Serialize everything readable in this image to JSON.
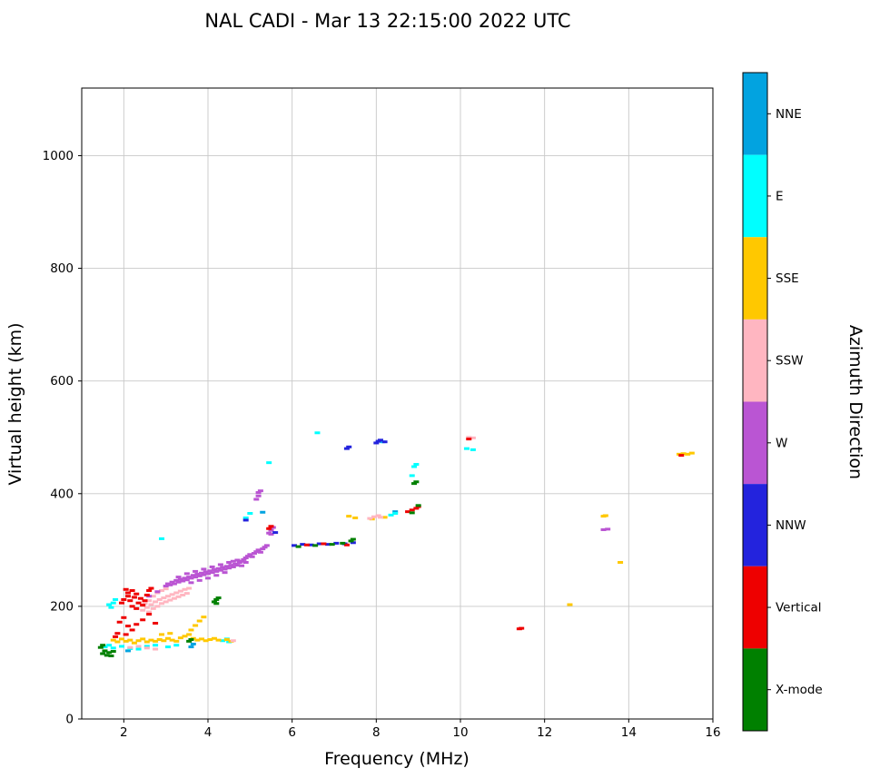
{
  "chart_data": {
    "type": "scatter",
    "title": "NAL CADI - Mar 13 22:15:00 2022 UTC",
    "xlabel": "Frequency (MHz)",
    "ylabel": "Virtual height (km)",
    "colorbar_label": "Azimuth Direction",
    "xlim": [
      1,
      16
    ],
    "ylim": [
      0,
      1120
    ],
    "x_ticks": [
      2,
      4,
      6,
      8,
      10,
      12,
      14,
      16
    ],
    "y_ticks": [
      0,
      200,
      400,
      600,
      800,
      1000
    ],
    "grid": true,
    "marker": "horizontal-dash",
    "legend_position": "right-colorbar",
    "categories": [
      {
        "name": "NNE",
        "color": "#02A3E0"
      },
      {
        "name": "E",
        "color": "#00FFFF"
      },
      {
        "name": "SSE",
        "color": "#FFC800"
      },
      {
        "name": "SSW",
        "color": "#FFB6C1"
      },
      {
        "name": "W",
        "color": "#BA55D3"
      },
      {
        "name": "NNW",
        "color": "#2323DD"
      },
      {
        "name": "Vertical",
        "color": "#EE0000"
      },
      {
        "name": "X-mode",
        "color": "#008000"
      }
    ],
    "series": [
      {
        "name": "NNE",
        "points": [
          [
            2.1,
            121
          ],
          [
            3.6,
            128
          ],
          [
            3.65,
            133
          ],
          [
            5.3,
            367
          ],
          [
            8.45,
            368
          ]
        ]
      },
      {
        "name": "E",
        "points": [
          [
            1.55,
            128
          ],
          [
            1.65,
            131
          ],
          [
            1.75,
            126
          ],
          [
            1.95,
            129
          ],
          [
            2.15,
            125
          ],
          [
            2.35,
            124
          ],
          [
            2.55,
            129
          ],
          [
            2.75,
            131
          ],
          [
            3.05,
            128
          ],
          [
            3.25,
            131
          ],
          [
            4.35,
            139
          ],
          [
            4.45,
            142
          ],
          [
            4.5,
            137
          ],
          [
            1.65,
            203
          ],
          [
            1.7,
            198
          ],
          [
            1.75,
            206
          ],
          [
            1.8,
            212
          ],
          [
            2.9,
            320
          ],
          [
            4.9,
            357
          ],
          [
            5.0,
            365
          ],
          [
            5.45,
            455
          ],
          [
            6.6,
            508
          ],
          [
            8.15,
            492
          ],
          [
            8.35,
            362
          ],
          [
            8.45,
            365
          ],
          [
            8.85,
            432
          ],
          [
            8.9,
            448
          ],
          [
            8.95,
            452
          ],
          [
            10.15,
            480
          ],
          [
            10.3,
            478
          ]
        ]
      },
      {
        "name": "SSE",
        "points": [
          [
            1.75,
            140
          ],
          [
            1.85,
            137
          ],
          [
            1.95,
            142
          ],
          [
            2.05,
            138
          ],
          [
            2.15,
            140
          ],
          [
            2.25,
            135
          ],
          [
            2.35,
            139
          ],
          [
            2.45,
            142
          ],
          [
            2.55,
            137
          ],
          [
            2.65,
            140
          ],
          [
            2.75,
            138
          ],
          [
            2.85,
            141
          ],
          [
            2.95,
            139
          ],
          [
            3.05,
            143
          ],
          [
            3.15,
            140
          ],
          [
            3.25,
            138
          ],
          [
            3.35,
            144
          ],
          [
            3.45,
            147
          ],
          [
            3.55,
            150
          ],
          [
            3.65,
            143
          ],
          [
            3.75,
            140
          ],
          [
            3.85,
            142
          ],
          [
            3.95,
            139
          ],
          [
            4.05,
            141
          ],
          [
            4.15,
            143
          ],
          [
            4.25,
            140
          ],
          [
            4.45,
            141
          ],
          [
            4.55,
            138
          ],
          [
            2.9,
            150
          ],
          [
            3.1,
            152
          ],
          [
            3.6,
            158
          ],
          [
            3.7,
            166
          ],
          [
            3.8,
            174
          ],
          [
            3.9,
            181
          ],
          [
            7.35,
            360
          ],
          [
            7.5,
            357
          ],
          [
            7.9,
            355
          ],
          [
            8.2,
            358
          ],
          [
            12.6,
            203
          ],
          [
            13.4,
            360
          ],
          [
            13.45,
            361
          ],
          [
            13.8,
            278
          ],
          [
            15.2,
            470
          ],
          [
            15.3,
            471
          ],
          [
            15.4,
            470
          ],
          [
            15.5,
            472
          ]
        ]
      },
      {
        "name": "SSW",
        "points": [
          [
            2.45,
            193
          ],
          [
            2.55,
            198
          ],
          [
            2.6,
            190
          ],
          [
            2.65,
            203
          ],
          [
            2.7,
            196
          ],
          [
            2.75,
            208
          ],
          [
            2.8,
            200
          ],
          [
            2.85,
            212
          ],
          [
            2.9,
            205
          ],
          [
            2.95,
            215
          ],
          [
            3.0,
            208
          ],
          [
            3.05,
            218
          ],
          [
            3.1,
            211
          ],
          [
            3.15,
            221
          ],
          [
            3.2,
            214
          ],
          [
            3.25,
            224
          ],
          [
            3.3,
            217
          ],
          [
            3.35,
            227
          ],
          [
            3.4,
            220
          ],
          [
            3.45,
            230
          ],
          [
            3.5,
            223
          ],
          [
            3.55,
            232
          ],
          [
            2.5,
            205
          ],
          [
            2.6,
            210
          ],
          [
            2.7,
            218
          ],
          [
            2.8,
            224
          ],
          [
            2.9,
            228
          ],
          [
            3.0,
            231
          ],
          [
            2.15,
            127
          ],
          [
            2.35,
            129
          ],
          [
            2.55,
            126
          ],
          [
            2.75,
            124
          ],
          [
            4.6,
            139
          ],
          [
            7.85,
            356
          ],
          [
            7.95,
            359
          ],
          [
            8.05,
            361
          ],
          [
            8.1,
            358
          ],
          [
            10.2,
            500
          ],
          [
            10.3,
            499
          ]
        ]
      },
      {
        "name": "W",
        "points": [
          [
            3.0,
            236
          ],
          [
            3.05,
            240
          ],
          [
            3.1,
            238
          ],
          [
            3.15,
            243
          ],
          [
            3.2,
            240
          ],
          [
            3.25,
            246
          ],
          [
            3.3,
            243
          ],
          [
            3.35,
            248
          ],
          [
            3.4,
            245
          ],
          [
            3.45,
            250
          ],
          [
            3.5,
            247
          ],
          [
            3.55,
            252
          ],
          [
            3.6,
            250
          ],
          [
            3.65,
            255
          ],
          [
            3.7,
            252
          ],
          [
            3.75,
            257
          ],
          [
            3.8,
            254
          ],
          [
            3.85,
            259
          ],
          [
            3.9,
            256
          ],
          [
            3.95,
            261
          ],
          [
            4.0,
            258
          ],
          [
            4.05,
            263
          ],
          [
            4.1,
            260
          ],
          [
            4.15,
            265
          ],
          [
            4.2,
            262
          ],
          [
            4.25,
            267
          ],
          [
            4.3,
            264
          ],
          [
            4.35,
            269
          ],
          [
            4.4,
            266
          ],
          [
            4.45,
            271
          ],
          [
            4.5,
            268
          ],
          [
            4.55,
            273
          ],
          [
            4.6,
            270
          ],
          [
            4.65,
            275
          ],
          [
            4.7,
            273
          ],
          [
            4.75,
            278
          ],
          [
            4.8,
            280
          ],
          [
            4.85,
            283
          ],
          [
            4.9,
            286
          ],
          [
            4.95,
            289
          ],
          [
            5.0,
            292
          ],
          [
            5.05,
            288
          ],
          [
            5.1,
            294
          ],
          [
            5.15,
            297
          ],
          [
            5.2,
            300
          ],
          [
            5.25,
            296
          ],
          [
            5.3,
            302
          ],
          [
            5.35,
            305
          ],
          [
            5.4,
            308
          ],
          [
            3.3,
            252
          ],
          [
            3.5,
            258
          ],
          [
            3.7,
            262
          ],
          [
            3.9,
            266
          ],
          [
            4.1,
            270
          ],
          [
            4.3,
            274
          ],
          [
            4.5,
            278
          ],
          [
            4.7,
            282
          ],
          [
            3.6,
            242
          ],
          [
            3.8,
            246
          ],
          [
            4.0,
            250
          ],
          [
            4.2,
            255
          ],
          [
            4.4,
            260
          ],
          [
            4.6,
            280
          ],
          [
            4.8,
            272
          ],
          [
            4.9,
            278
          ],
          [
            5.45,
            330
          ],
          [
            5.5,
            335
          ],
          [
            5.5,
            328
          ],
          [
            5.55,
            340
          ],
          [
            5.15,
            390
          ],
          [
            5.2,
            396
          ],
          [
            5.2,
            402
          ],
          [
            5.25,
            405
          ],
          [
            2.6,
            218
          ],
          [
            2.8,
            226
          ],
          [
            13.4,
            336
          ],
          [
            13.5,
            337
          ]
        ]
      },
      {
        "name": "NNW",
        "points": [
          [
            6.05,
            308
          ],
          [
            6.25,
            310
          ],
          [
            6.45,
            309
          ],
          [
            6.65,
            311
          ],
          [
            6.85,
            310
          ],
          [
            7.05,
            312
          ],
          [
            7.25,
            311
          ],
          [
            7.45,
            313
          ],
          [
            5.6,
            331
          ],
          [
            4.9,
            353
          ],
          [
            7.3,
            480
          ],
          [
            7.35,
            483
          ],
          [
            8.0,
            490
          ],
          [
            8.05,
            493
          ],
          [
            8.1,
            495
          ],
          [
            8.2,
            492
          ]
        ]
      },
      {
        "name": "Vertical",
        "points": [
          [
            1.85,
            152
          ],
          [
            1.9,
            172
          ],
          [
            1.95,
            206
          ],
          [
            2.0,
            180
          ],
          [
            2.0,
            212
          ],
          [
            2.05,
            150
          ],
          [
            2.05,
            230
          ],
          [
            2.1,
            165
          ],
          [
            2.1,
            218
          ],
          [
            2.1,
            224
          ],
          [
            2.15,
            210
          ],
          [
            2.2,
            158
          ],
          [
            2.2,
            200
          ],
          [
            2.2,
            228
          ],
          [
            2.25,
            216
          ],
          [
            2.3,
            168
          ],
          [
            2.3,
            196
          ],
          [
            2.3,
            222
          ],
          [
            2.35,
            206
          ],
          [
            2.4,
            214
          ],
          [
            2.45,
            176
          ],
          [
            2.45,
            202
          ],
          [
            2.5,
            210
          ],
          [
            2.55,
            220
          ],
          [
            2.6,
            186
          ],
          [
            2.6,
            228
          ],
          [
            2.65,
            232
          ],
          [
            2.75,
            170
          ],
          [
            1.8,
            146
          ],
          [
            5.45,
            338
          ],
          [
            5.5,
            342
          ],
          [
            6.35,
            309
          ],
          [
            6.75,
            311
          ],
          [
            7.3,
            309
          ],
          [
            8.75,
            368
          ],
          [
            8.85,
            371
          ],
          [
            8.95,
            374
          ],
          [
            9.0,
            377
          ],
          [
            10.2,
            497
          ],
          [
            11.4,
            160
          ],
          [
            11.45,
            161
          ],
          [
            15.25,
            468
          ]
        ]
      },
      {
        "name": "X-mode",
        "points": [
          [
            1.45,
            127
          ],
          [
            1.5,
            116
          ],
          [
            1.5,
            131
          ],
          [
            1.55,
            121
          ],
          [
            1.6,
            113
          ],
          [
            1.65,
            118
          ],
          [
            1.7,
            112
          ],
          [
            1.75,
            120
          ],
          [
            3.55,
            138
          ],
          [
            3.6,
            141
          ],
          [
            4.15,
            208
          ],
          [
            4.2,
            205
          ],
          [
            4.2,
            212
          ],
          [
            4.25,
            215
          ],
          [
            6.15,
            306
          ],
          [
            6.55,
            308
          ],
          [
            6.95,
            310
          ],
          [
            7.2,
            312
          ],
          [
            7.4,
            316
          ],
          [
            7.45,
            319
          ],
          [
            8.85,
            366
          ],
          [
            9.0,
            379
          ],
          [
            8.9,
            418
          ],
          [
            8.95,
            421
          ]
        ]
      }
    ]
  }
}
